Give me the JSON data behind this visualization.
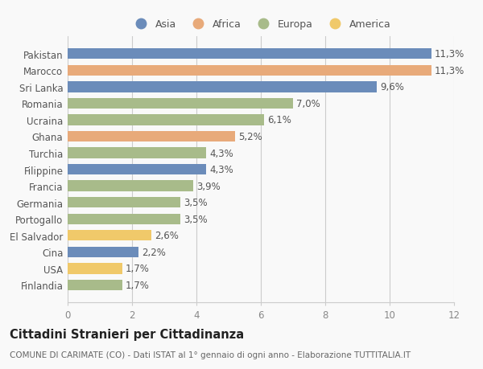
{
  "countries": [
    "Finlandia",
    "USA",
    "Cina",
    "El Salvador",
    "Portogallo",
    "Germania",
    "Francia",
    "Filippine",
    "Turchia",
    "Ghana",
    "Ucraina",
    "Romania",
    "Sri Lanka",
    "Marocco",
    "Pakistan"
  ],
  "values": [
    1.7,
    1.7,
    2.2,
    2.6,
    3.5,
    3.5,
    3.9,
    4.3,
    4.3,
    5.2,
    6.1,
    7.0,
    9.6,
    11.3,
    11.3
  ],
  "labels": [
    "1,7%",
    "1,7%",
    "2,2%",
    "2,6%",
    "3,5%",
    "3,5%",
    "3,9%",
    "4,3%",
    "4,3%",
    "5,2%",
    "6,1%",
    "7,0%",
    "9,6%",
    "11,3%",
    "11,3%"
  ],
  "continents": [
    "Europa",
    "America",
    "Asia",
    "America",
    "Europa",
    "Europa",
    "Europa",
    "Asia",
    "Europa",
    "Africa",
    "Europa",
    "Europa",
    "Asia",
    "Africa",
    "Asia"
  ],
  "colors": {
    "Asia": "#6b8cba",
    "Africa": "#e8aa7a",
    "Europa": "#a8bb8a",
    "America": "#f0c96a"
  },
  "legend_labels": [
    "Asia",
    "Africa",
    "Europa",
    "America"
  ],
  "legend_colors": [
    "#6b8cba",
    "#e8aa7a",
    "#a8bb8a",
    "#f0c96a"
  ],
  "title": "Cittadini Stranieri per Cittadinanza",
  "subtitle": "COMUNE DI CARIMATE (CO) - Dati ISTAT al 1° gennaio di ogni anno - Elaborazione TUTTITALIA.IT",
  "xlim": [
    0,
    12
  ],
  "xticks": [
    0,
    2,
    4,
    6,
    8,
    10,
    12
  ],
  "bg_color": "#f9f9f9",
  "bar_height": 0.65,
  "label_fontsize": 8.5,
  "tick_fontsize": 8.5,
  "title_fontsize": 10.5,
  "subtitle_fontsize": 7.5
}
